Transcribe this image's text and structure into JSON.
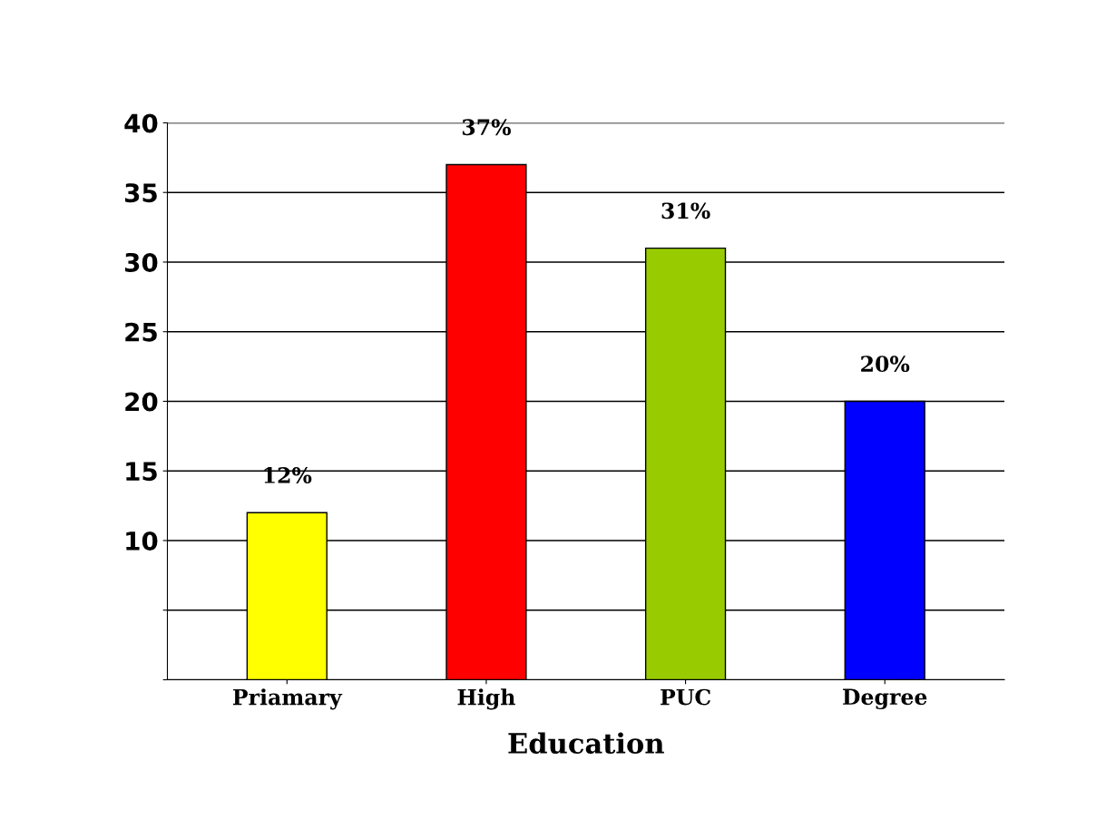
{
  "chart_data": {
    "type": "bar",
    "xlabel": "Education",
    "categories": [
      "Priamary",
      "High",
      "PUC",
      "Degree"
    ],
    "values": [
      12,
      37,
      31,
      20
    ],
    "colors": [
      "#ffff00",
      "#ff0000",
      "#99cc00",
      "#0000ff"
    ],
    "value_labels": [
      "12%",
      "37%",
      "31%",
      "20%"
    ],
    "ylim": [
      0,
      40
    ],
    "yticks": [
      {
        "value": 0,
        "label": null
      },
      {
        "value": 5,
        "label": null
      },
      10,
      15,
      20,
      25,
      30,
      35,
      40
    ],
    "grid": "y",
    "legend": false
  }
}
